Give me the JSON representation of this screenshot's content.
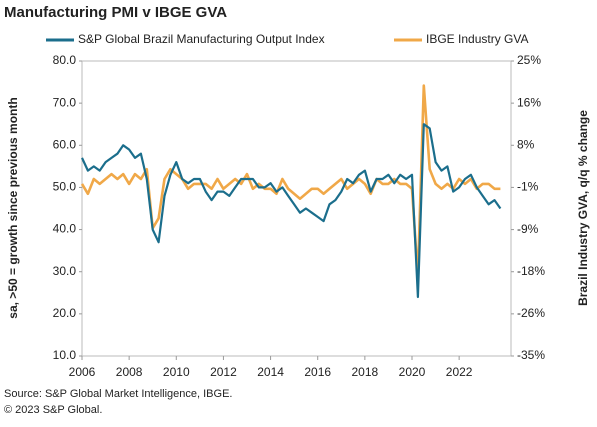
{
  "chart_data": {
    "type": "line",
    "title": "Manufacturing PMI v IBGE GVA",
    "ylabel": "sa, >50 = growth since previous month",
    "y2label": "Brazil Industry GVA, q/q % change",
    "source": "Source: S&P Global Market Intelligence, IBGE.",
    "copyright": "© 2023 S&P Global.",
    "x": [
      2006,
      2006.25,
      2006.5,
      2006.75,
      2007,
      2007.25,
      2007.5,
      2007.75,
      2008,
      2008.25,
      2008.5,
      2008.75,
      2009,
      2009.25,
      2009.5,
      2009.75,
      2010,
      2010.25,
      2010.5,
      2010.75,
      2011,
      2011.25,
      2011.5,
      2011.75,
      2012,
      2012.25,
      2012.5,
      2012.75,
      2013,
      2013.25,
      2013.5,
      2013.75,
      2014,
      2014.25,
      2014.5,
      2014.75,
      2015,
      2015.25,
      2015.5,
      2015.75,
      2016,
      2016.25,
      2016.5,
      2016.75,
      2017,
      2017.25,
      2017.5,
      2017.75,
      2018,
      2018.25,
      2018.5,
      2018.75,
      2019,
      2019.25,
      2019.5,
      2019.75,
      2020,
      2020.25,
      2020.5,
      2020.75,
      2021,
      2021.25,
      2021.5,
      2021.75,
      2022,
      2022.25,
      2022.5,
      2022.75,
      2023,
      2023.25,
      2023.5,
      2023.75
    ],
    "series": [
      {
        "name": "S&P Global Brazil Manufacturing Output Index",
        "color": "#1b6e8c",
        "values": [
          57,
          54,
          55,
          54,
          56,
          57,
          58,
          60,
          59,
          57,
          58,
          52,
          40,
          37,
          48,
          53,
          56,
          52,
          51,
          52,
          52,
          49,
          47,
          49,
          49,
          48,
          50,
          52,
          52,
          52,
          50,
          50,
          51,
          49,
          50,
          48,
          46,
          44,
          45,
          44,
          43,
          42,
          46,
          47,
          49,
          52,
          51,
          53,
          54,
          49,
          52,
          52,
          53,
          51,
          53,
          52,
          53,
          24,
          65,
          64,
          56,
          54,
          55,
          49,
          50,
          52,
          53,
          50,
          48,
          46,
          47,
          45
        ]
      },
      {
        "name": "IBGE Industry GVA",
        "color": "#f0a848",
        "axis": "y2",
        "values": [
          0,
          -2,
          1,
          0,
          1,
          2,
          1,
          2,
          0,
          2,
          1,
          3,
          -9,
          -7,
          1,
          3,
          2,
          1,
          -1,
          0,
          0,
          0,
          -1,
          1,
          -1,
          0,
          1,
          0,
          2,
          -1,
          0,
          -1,
          -1,
          -2,
          1,
          -1,
          -2,
          -3,
          -2,
          -1,
          -1,
          -2,
          -1,
          0,
          1,
          -1,
          0,
          1,
          0,
          -2,
          1,
          0,
          0,
          1,
          0,
          0,
          -1,
          -19,
          20,
          3,
          0,
          -1,
          0,
          -1,
          1,
          0,
          1,
          -1,
          0,
          0,
          -1,
          -1
        ]
      }
    ],
    "xlim": [
      2006,
      2024.2
    ],
    "xticks": [
      2006,
      2008,
      2010,
      2012,
      2014,
      2016,
      2018,
      2020,
      2022
    ],
    "ylim": [
      10,
      80
    ],
    "yticks": [
      {
        "value": 10,
        "label": "10.0"
      },
      {
        "value": 20,
        "label": "20.0"
      },
      {
        "value": 30,
        "label": "30.0"
      },
      {
        "value": 40,
        "label": "40.0"
      },
      {
        "value": 50,
        "label": "50.0"
      },
      {
        "value": 60,
        "label": "60.0"
      },
      {
        "value": 70,
        "label": "70.0"
      },
      {
        "value": 80,
        "label": "80.0"
      }
    ],
    "y2lim": [
      -35,
      25
    ],
    "y2ticks": [
      {
        "value": -35,
        "label": "-35%"
      },
      {
        "value": -26.43,
        "label": "-26%"
      },
      {
        "value": -17.86,
        "label": "-18%"
      },
      {
        "value": -9.29,
        "label": "-9%"
      },
      {
        "value": -0.71,
        "label": "-1%"
      },
      {
        "value": 7.86,
        "label": "8%"
      },
      {
        "value": 16.43,
        "label": "16%"
      },
      {
        "value": 25,
        "label": "25%"
      }
    ]
  }
}
